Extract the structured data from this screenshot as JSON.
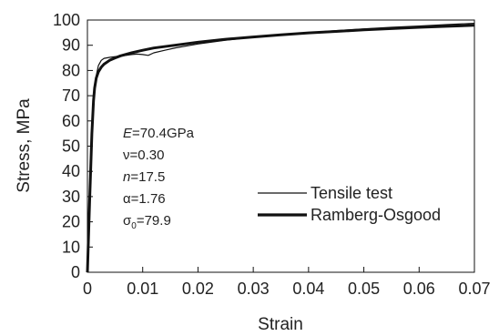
{
  "chart_data": {
    "type": "line",
    "xlabel": "Strain",
    "ylabel": "Stress, MPa",
    "xlim": [
      0,
      0.07
    ],
    "ylim": [
      0,
      100
    ],
    "x_ticks": [
      "0",
      "0.01",
      "0.02",
      "0.03",
      "0.04",
      "0.05",
      "0.06",
      "0.07"
    ],
    "y_ticks": [
      "0",
      "10",
      "20",
      "30",
      "40",
      "50",
      "60",
      "70",
      "80",
      "90",
      "100"
    ],
    "grid": false,
    "legend_position": "center-right",
    "series": [
      {
        "name": "Tensile test",
        "style": "thin",
        "color": "#111111",
        "x": [
          0,
          0.0003,
          0.0006,
          0.0009,
          0.0012,
          0.0015,
          0.002,
          0.0025,
          0.003,
          0.004,
          0.005,
          0.006,
          0.007,
          0.008,
          0.009,
          0.01,
          0.011,
          0.012,
          0.014,
          0.016,
          0.02,
          0.025,
          0.03,
          0.035,
          0.04,
          0.045,
          0.05,
          0.055,
          0.06,
          0.065,
          0.07
        ],
        "y": [
          0,
          20,
          40,
          58,
          70,
          77,
          82,
          84,
          84.8,
          85.2,
          85.5,
          85.7,
          86,
          86.3,
          86.5,
          86.3,
          86,
          87,
          88,
          89,
          90.5,
          92,
          93.2,
          94.2,
          95,
          95.8,
          96.5,
          97.1,
          97.6,
          98.2,
          98.7
        ]
      },
      {
        "name": "Ramberg-Osgood",
        "style": "thick",
        "color": "#111111",
        "x": [
          0,
          0.0004,
          0.0008,
          0.0011,
          0.0013,
          0.0016,
          0.002,
          0.0025,
          0.003,
          0.004,
          0.005,
          0.006,
          0.008,
          0.01,
          0.012,
          0.015,
          0.02,
          0.025,
          0.03,
          0.035,
          0.04,
          0.045,
          0.05,
          0.055,
          0.06,
          0.065,
          0.07
        ],
        "y": [
          0,
          28,
          55,
          68,
          73,
          77,
          79.5,
          81.3,
          82.5,
          84,
          85,
          85.8,
          87,
          88,
          88.9,
          89.8,
          91.2,
          92.4,
          93.3,
          94.1,
          94.9,
          95.5,
          96.1,
          96.6,
          97.1,
          97.5,
          97.9
        ]
      }
    ],
    "annotations": [
      {
        "symbol": "E",
        "rest": "=70.4GPa"
      },
      {
        "symbol": "",
        "rest": "ν=0.30"
      },
      {
        "symbol": "n",
        "rest": "=17.5"
      },
      {
        "symbol": "",
        "rest": "α=1.76"
      },
      {
        "symbol": "",
        "rest": "σ",
        "sub": "0",
        "after": "=79.9"
      }
    ]
  }
}
